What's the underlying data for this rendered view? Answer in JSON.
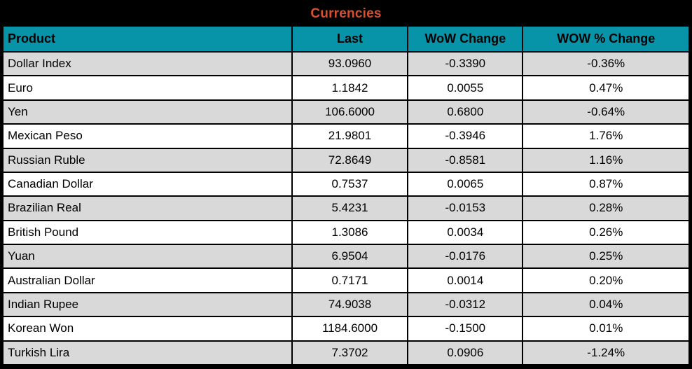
{
  "title": "Currencies",
  "colors": {
    "title_bg": "#000000",
    "title_text": "#D6502E",
    "header_bg": "#0794A8",
    "header_text": "#000000",
    "row_alt_bg": "#D9D9D9",
    "row_bg": "#FFFFFF",
    "grid_border": "#000000"
  },
  "chart_data": {
    "type": "table",
    "title": "Currencies",
    "columns": [
      "Product",
      "Last",
      "WoW Change",
      "WOW % Change"
    ],
    "rows": [
      {
        "product": "Dollar Index",
        "last": "93.0960",
        "wow_change": "-0.3390",
        "wow_pct_change": "-0.36%"
      },
      {
        "product": "Euro",
        "last": "1.1842",
        "wow_change": "0.0055",
        "wow_pct_change": "0.47%"
      },
      {
        "product": "Yen",
        "last": "106.6000",
        "wow_change": "0.6800",
        "wow_pct_change": "-0.64%"
      },
      {
        "product": "Mexican Peso",
        "last": "21.9801",
        "wow_change": "-0.3946",
        "wow_pct_change": "1.76%"
      },
      {
        "product": "Russian Ruble",
        "last": "72.8649",
        "wow_change": "-0.8581",
        "wow_pct_change": "1.16%"
      },
      {
        "product": "Canadian Dollar",
        "last": "0.7537",
        "wow_change": "0.0065",
        "wow_pct_change": "0.87%"
      },
      {
        "product": "Brazilian Real",
        "last": "5.4231",
        "wow_change": "-0.0153",
        "wow_pct_change": "0.28%"
      },
      {
        "product": "British Pound",
        "last": "1.3086",
        "wow_change": "0.0034",
        "wow_pct_change": "0.26%"
      },
      {
        "product": "Yuan",
        "last": "6.9504",
        "wow_change": "-0.0176",
        "wow_pct_change": "0.25%"
      },
      {
        "product": "Australian Dollar",
        "last": "0.7171",
        "wow_change": "0.0014",
        "wow_pct_change": "0.20%"
      },
      {
        "product": "Indian Rupee",
        "last": "74.9038",
        "wow_change": "-0.0312",
        "wow_pct_change": "0.04%"
      },
      {
        "product": "Korean Won",
        "last": "1184.6000",
        "wow_change": "-0.1500",
        "wow_pct_change": "0.01%"
      },
      {
        "product": "Turkish Lira",
        "last": "7.3702",
        "wow_change": "0.0906",
        "wow_pct_change": "-1.24%"
      }
    ]
  }
}
